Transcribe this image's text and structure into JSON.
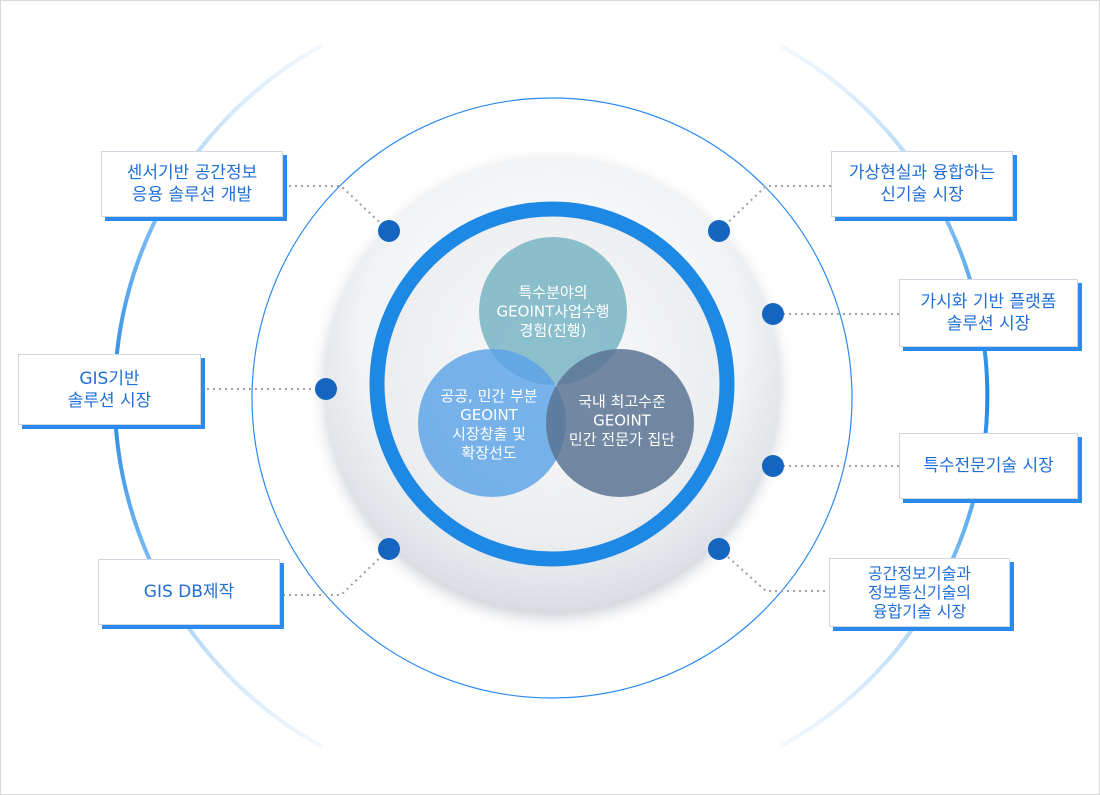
{
  "center_circles": {
    "top": "특수분야의\nGEOINT사업수행\n경험(진행)",
    "left": "공공, 민간 부분\nGEOINT\n시장창출 및\n확장선도",
    "right": "국내 최고수준\nGEOINT\n민간 전문가 집단"
  },
  "boxes": {
    "left_top": "센서기반 공간정보\n응용 솔루션 개발",
    "left_middle": "GIS기반\n솔루션 시장",
    "left_bottom": "GIS DB제작",
    "right_1": "가상현실과 융합하는\n신기술 시장",
    "right_2": "가시화 기반 플랫폼\n솔루션 시장",
    "right_3": "특수전문기술 시장",
    "right_4": "공간정보기술과\n정보통신기술의\n융합기술 시장"
  },
  "colors": {
    "accent": "#1e88e5",
    "dot": "#1565c0",
    "circle_top": "#7fb8c6",
    "circle_left": "#5aa2e6",
    "circle_right": "#5a7392",
    "box_text": "#1f6fd6"
  },
  "icons": {
    "connector_dot": "blue-dot-icon"
  }
}
